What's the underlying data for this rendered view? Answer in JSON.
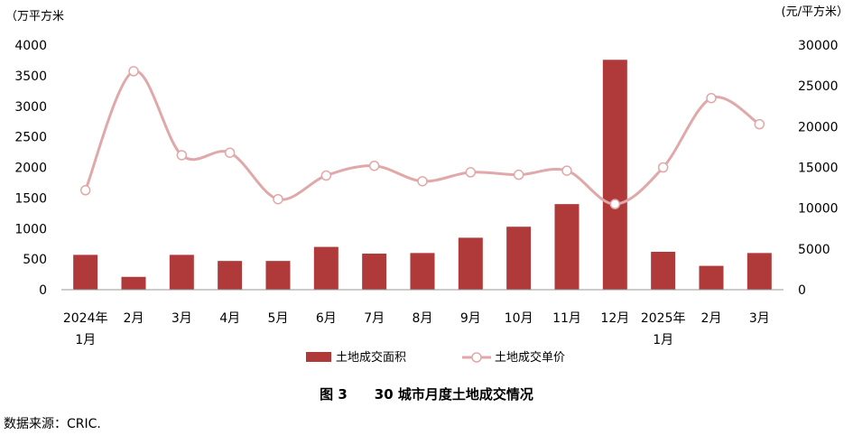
{
  "figure": {
    "caption_label": "图 3",
    "caption_title": "30 城市月度土地成交情况",
    "source": "数据来源：CRIC."
  },
  "chart_data": {
    "type": "bar+line",
    "y_left_label": "（万平方米",
    "y_right_label": "(元/平方米）",
    "y_left_lim": [
      0,
      4000
    ],
    "y_left_ticks": [
      0,
      500,
      1000,
      1500,
      2000,
      2500,
      3000,
      3500,
      4000
    ],
    "y_right_lim": [
      0,
      30000
    ],
    "y_right_ticks": [
      0,
      5000,
      10000,
      15000,
      20000,
      25000,
      30000
    ],
    "categories": [
      {
        "line1": "2024年",
        "line2": "1月"
      },
      {
        "line1": "2月",
        "line2": ""
      },
      {
        "line1": "3月",
        "line2": ""
      },
      {
        "line1": "4月",
        "line2": ""
      },
      {
        "line1": "5月",
        "line2": ""
      },
      {
        "line1": "6月",
        "line2": ""
      },
      {
        "line1": "7月",
        "line2": ""
      },
      {
        "line1": "8月",
        "line2": ""
      },
      {
        "line1": "9月",
        "line2": ""
      },
      {
        "line1": "10月",
        "line2": ""
      },
      {
        "line1": "11月",
        "line2": ""
      },
      {
        "line1": "12月",
        "line2": ""
      },
      {
        "line1": "2025年",
        "line2": "1月"
      },
      {
        "line1": "2月",
        "line2": ""
      },
      {
        "line1": "3月",
        "line2": ""
      }
    ],
    "series": [
      {
        "name": "土地成交面积",
        "kind": "bar",
        "axis": "left",
        "color": "#b03a3a",
        "values": [
          570,
          210,
          570,
          470,
          470,
          700,
          590,
          600,
          850,
          1030,
          1400,
          3760,
          620,
          390,
          600
        ]
      },
      {
        "name": "土地成交单价",
        "kind": "line",
        "axis": "right",
        "color": "#e0a8a8",
        "values": [
          12200,
          26800,
          16500,
          16800,
          11100,
          14000,
          15200,
          13300,
          14400,
          14100,
          14600,
          10500,
          15000,
          23500,
          20300
        ]
      }
    ],
    "legend_position": "bottom"
  }
}
